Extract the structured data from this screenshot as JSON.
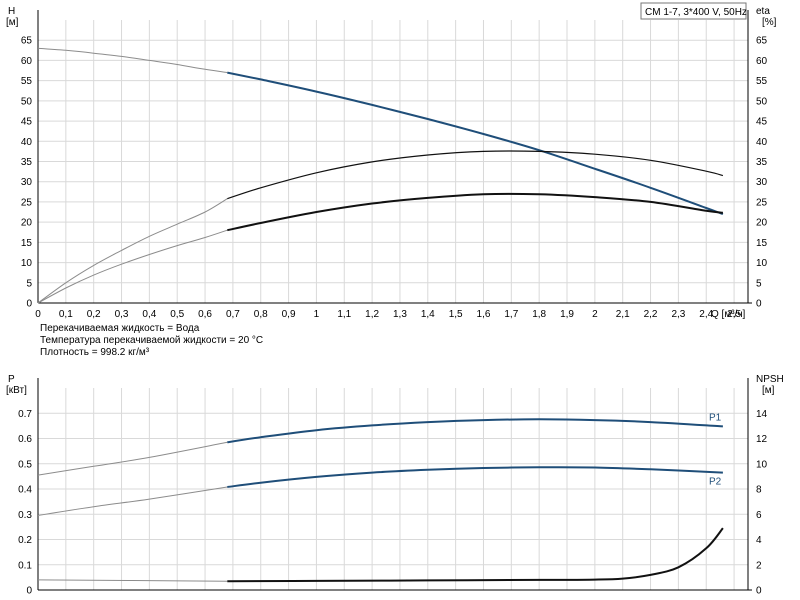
{
  "title": "CM 1-7, 3*400 V, 50Hz",
  "conditions": [
    "Перекачиваемая жидкость = Вода",
    "Температура перекачиваемой жидкости = 20 °C",
    "Плотность = 998.2 кг/м³"
  ],
  "colors": {
    "blue": "#1f4e79",
    "black": "#111111",
    "gray": "#8c8c8c",
    "grid": "#d9d9d9"
  },
  "chart_data": [
    {
      "type": "line",
      "id": "top",
      "xlabel": "Q [м³/ч]",
      "y_left": {
        "name": "H",
        "unit": "[м]",
        "ticks": [
          0,
          5,
          10,
          15,
          20,
          25,
          30,
          35,
          40,
          45,
          50,
          55,
          60,
          65
        ],
        "range": [
          0,
          70
        ]
      },
      "y_right": {
        "name": "eta",
        "unit": "[%]",
        "ticks": [
          0,
          5,
          10,
          15,
          20,
          25,
          30,
          35,
          40,
          45,
          50,
          55,
          60,
          65
        ],
        "range": [
          0,
          70
        ]
      },
      "x_range": [
        0,
        2.55
      ],
      "x_ticks": [
        "0",
        "0,1",
        "0,2",
        "0,3",
        "0,4",
        "0,5",
        "0,6",
        "0,7",
        "0,8",
        "0,9",
        "1",
        "1,1",
        "1,2",
        "1,3",
        "1,4",
        "1,5",
        "1,6",
        "1,7",
        "1,8",
        "1,9",
        "2",
        "2,1",
        "2,2",
        "2,3",
        "2,4",
        "2,5"
      ],
      "grid": true,
      "series": [
        {
          "id": "H",
          "axis": "left",
          "color": "blue",
          "x": [
            0,
            0.1,
            0.2,
            0.3,
            0.4,
            0.5,
            0.6,
            0.68,
            0.8,
            1.0,
            1.2,
            1.4,
            1.6,
            1.8,
            2.0,
            2.2,
            2.4,
            2.46
          ],
          "y": [
            63,
            62.5,
            61.8,
            61,
            60,
            59,
            57.8,
            57,
            55.3,
            52.3,
            49,
            45.5,
            41.8,
            37.8,
            33.2,
            28.5,
            23.5,
            22
          ],
          "extrapolated_to": 0.68
        },
        {
          "id": "eta-upper",
          "axis": "right",
          "color": "black",
          "x": [
            0,
            0.1,
            0.2,
            0.3,
            0.4,
            0.5,
            0.6,
            0.68,
            0.8,
            1.0,
            1.2,
            1.4,
            1.6,
            1.8,
            2.0,
            2.2,
            2.4,
            2.46
          ],
          "y": [
            0,
            5,
            9.3,
            13,
            16.5,
            19.5,
            22.5,
            25.8,
            28.5,
            32.2,
            34.9,
            36.6,
            37.5,
            37.5,
            36.8,
            35.3,
            32.6,
            31.5
          ],
          "extrapolated_to": 0.68
        },
        {
          "id": "eta-lower",
          "axis": "right",
          "color": "black",
          "x": [
            0,
            0.1,
            0.2,
            0.3,
            0.4,
            0.5,
            0.6,
            0.68,
            0.8,
            1.0,
            1.2,
            1.4,
            1.6,
            1.8,
            2.0,
            2.2,
            2.4,
            2.46
          ],
          "y": [
            0,
            3.7,
            6.9,
            9.6,
            12,
            14.2,
            16.2,
            18,
            19.8,
            22.5,
            24.6,
            26,
            26.9,
            26.9,
            26.2,
            25,
            22.8,
            22.3
          ],
          "extrapolated_to": 0.68
        }
      ]
    },
    {
      "type": "line",
      "id": "bottom",
      "y_left": {
        "name": "P",
        "unit": "[кВт]",
        "ticks": [
          "0",
          "0.1",
          "0.2",
          "0.3",
          "0.4",
          "0.5",
          "0.6",
          "0.7"
        ],
        "range": [
          0,
          0.8
        ]
      },
      "y_right": {
        "name": "NPSH",
        "unit": "[м]",
        "ticks": [
          0,
          2,
          4,
          6,
          8,
          10,
          12,
          14
        ],
        "range": [
          0,
          16
        ]
      },
      "x_range": [
        0,
        2.55
      ],
      "grid": true,
      "series": [
        {
          "id": "P1",
          "name": "P1",
          "axis": "left",
          "color": "blue",
          "x": [
            0,
            0.2,
            0.4,
            0.68,
            0.8,
            1.0,
            1.2,
            1.4,
            1.6,
            1.8,
            2.0,
            2.2,
            2.46
          ],
          "y": [
            0.455,
            0.49,
            0.525,
            0.585,
            0.605,
            0.633,
            0.652,
            0.665,
            0.673,
            0.676,
            0.673,
            0.665,
            0.648
          ],
          "extrapolated_to": 0.68
        },
        {
          "id": "P2",
          "name": "P2",
          "axis": "left",
          "color": "blue",
          "x": [
            0,
            0.2,
            0.4,
            0.68,
            0.8,
            1.0,
            1.2,
            1.4,
            1.6,
            1.8,
            2.0,
            2.2,
            2.46
          ],
          "y": [
            0.295,
            0.33,
            0.36,
            0.408,
            0.425,
            0.448,
            0.465,
            0.476,
            0.483,
            0.486,
            0.485,
            0.478,
            0.465
          ],
          "extrapolated_to": 0.68
        },
        {
          "id": "NPSH",
          "axis": "right",
          "color": "black",
          "x": [
            0,
            0.68,
            1.0,
            1.4,
            1.8,
            2.0,
            2.1,
            2.2,
            2.3,
            2.4,
            2.46
          ],
          "y": [
            0.8,
            0.7,
            0.72,
            0.76,
            0.8,
            0.82,
            0.9,
            1.2,
            1.8,
            3.3,
            4.9
          ],
          "extrapolated_to": 0.68
        }
      ]
    }
  ]
}
